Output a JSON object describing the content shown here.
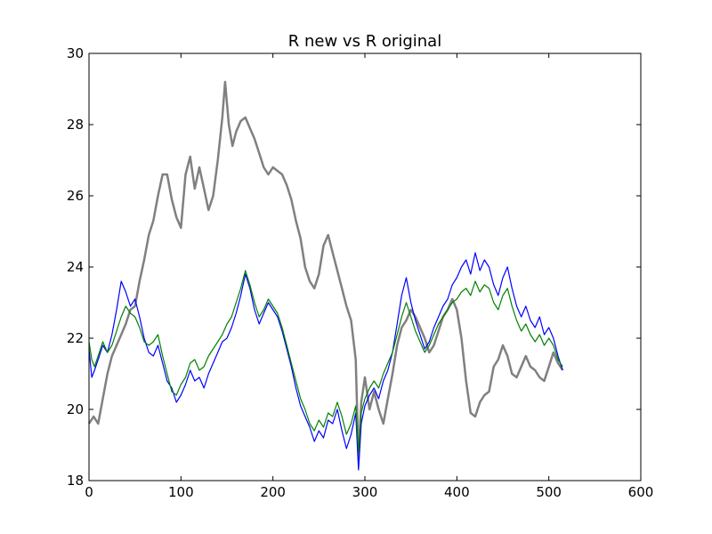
{
  "chart_data": {
    "type": "line",
    "title": "R new vs R original",
    "xlabel": "",
    "ylabel": "",
    "xlim": [
      0,
      600
    ],
    "ylim": [
      18,
      30
    ],
    "xticks": [
      0,
      100,
      200,
      300,
      400,
      500,
      600
    ],
    "yticks": [
      18,
      20,
      22,
      24,
      26,
      28,
      30
    ],
    "grid": false,
    "legend": "none",
    "series": [
      {
        "color": "#808080",
        "line_style": "thick",
        "points": [
          [
            0,
            19.6
          ],
          [
            5,
            19.8
          ],
          [
            10,
            19.6
          ],
          [
            15,
            20.3
          ],
          [
            20,
            21.0
          ],
          [
            25,
            21.5
          ],
          [
            30,
            21.8
          ],
          [
            35,
            22.1
          ],
          [
            40,
            22.4
          ],
          [
            45,
            22.8
          ],
          [
            50,
            22.9
          ],
          [
            55,
            23.6
          ],
          [
            60,
            24.2
          ],
          [
            65,
            24.9
          ],
          [
            70,
            25.3
          ],
          [
            75,
            26.0
          ],
          [
            80,
            26.6
          ],
          [
            85,
            26.6
          ],
          [
            90,
            25.9
          ],
          [
            95,
            25.4
          ],
          [
            100,
            25.1
          ],
          [
            105,
            26.6
          ],
          [
            110,
            27.1
          ],
          [
            115,
            26.2
          ],
          [
            120,
            26.8
          ],
          [
            125,
            26.2
          ],
          [
            130,
            25.6
          ],
          [
            135,
            26.0
          ],
          [
            140,
            27.0
          ],
          [
            145,
            28.2
          ],
          [
            148,
            29.2
          ],
          [
            152,
            28.0
          ],
          [
            156,
            27.4
          ],
          [
            160,
            27.8
          ],
          [
            165,
            28.1
          ],
          [
            170,
            28.2
          ],
          [
            175,
            27.9
          ],
          [
            180,
            27.6
          ],
          [
            185,
            27.2
          ],
          [
            190,
            26.8
          ],
          [
            195,
            26.6
          ],
          [
            200,
            26.8
          ],
          [
            205,
            26.7
          ],
          [
            210,
            26.6
          ],
          [
            215,
            26.3
          ],
          [
            220,
            25.9
          ],
          [
            225,
            25.3
          ],
          [
            230,
            24.8
          ],
          [
            235,
            24.0
          ],
          [
            240,
            23.6
          ],
          [
            245,
            23.4
          ],
          [
            250,
            23.8
          ],
          [
            255,
            24.6
          ],
          [
            260,
            24.9
          ],
          [
            265,
            24.4
          ],
          [
            270,
            23.9
          ],
          [
            275,
            23.4
          ],
          [
            280,
            22.9
          ],
          [
            285,
            22.5
          ],
          [
            290,
            21.4
          ],
          [
            293,
            18.6
          ],
          [
            296,
            20.2
          ],
          [
            300,
            20.9
          ],
          [
            305,
            20.0
          ],
          [
            310,
            20.5
          ],
          [
            315,
            20.0
          ],
          [
            320,
            19.6
          ],
          [
            325,
            20.3
          ],
          [
            330,
            21.0
          ],
          [
            335,
            21.8
          ],
          [
            340,
            22.3
          ],
          [
            345,
            22.5
          ],
          [
            350,
            22.8
          ],
          [
            355,
            22.6
          ],
          [
            360,
            22.3
          ],
          [
            365,
            22.0
          ],
          [
            370,
            21.6
          ],
          [
            375,
            21.8
          ],
          [
            380,
            22.2
          ],
          [
            385,
            22.6
          ],
          [
            390,
            22.8
          ],
          [
            395,
            23.1
          ],
          [
            400,
            22.8
          ],
          [
            405,
            22.0
          ],
          [
            410,
            20.8
          ],
          [
            415,
            19.9
          ],
          [
            420,
            19.8
          ],
          [
            425,
            20.2
          ],
          [
            430,
            20.4
          ],
          [
            435,
            20.5
          ],
          [
            440,
            21.2
          ],
          [
            445,
            21.4
          ],
          [
            450,
            21.8
          ],
          [
            455,
            21.5
          ],
          [
            460,
            21.0
          ],
          [
            465,
            20.9
          ],
          [
            470,
            21.2
          ],
          [
            475,
            21.5
          ],
          [
            480,
            21.2
          ],
          [
            485,
            21.1
          ],
          [
            490,
            20.9
          ],
          [
            495,
            20.8
          ],
          [
            500,
            21.2
          ],
          [
            505,
            21.6
          ],
          [
            510,
            21.3
          ],
          [
            515,
            21.1
          ]
        ]
      },
      {
        "color": "#0000ff",
        "line_style": "thin",
        "points": [
          [
            0,
            21.7
          ],
          [
            3,
            20.9
          ],
          [
            6,
            21.1
          ],
          [
            10,
            21.4
          ],
          [
            15,
            21.8
          ],
          [
            20,
            21.6
          ],
          [
            25,
            22.1
          ],
          [
            30,
            22.8
          ],
          [
            35,
            23.6
          ],
          [
            40,
            23.3
          ],
          [
            45,
            22.9
          ],
          [
            50,
            23.1
          ],
          [
            55,
            22.6
          ],
          [
            60,
            22.0
          ],
          [
            65,
            21.6
          ],
          [
            70,
            21.5
          ],
          [
            75,
            21.8
          ],
          [
            80,
            21.3
          ],
          [
            85,
            20.8
          ],
          [
            90,
            20.6
          ],
          [
            95,
            20.2
          ],
          [
            100,
            20.4
          ],
          [
            105,
            20.7
          ],
          [
            110,
            21.1
          ],
          [
            115,
            20.8
          ],
          [
            120,
            20.9
          ],
          [
            125,
            20.6
          ],
          [
            130,
            21.0
          ],
          [
            135,
            21.3
          ],
          [
            140,
            21.6
          ],
          [
            145,
            21.9
          ],
          [
            150,
            22.0
          ],
          [
            155,
            22.3
          ],
          [
            160,
            22.7
          ],
          [
            165,
            23.2
          ],
          [
            170,
            23.8
          ],
          [
            175,
            23.4
          ],
          [
            180,
            22.8
          ],
          [
            185,
            22.4
          ],
          [
            190,
            22.7
          ],
          [
            195,
            23.0
          ],
          [
            200,
            22.8
          ],
          [
            205,
            22.6
          ],
          [
            210,
            22.2
          ],
          [
            215,
            21.7
          ],
          [
            220,
            21.2
          ],
          [
            225,
            20.6
          ],
          [
            230,
            20.1
          ],
          [
            235,
            19.8
          ],
          [
            240,
            19.5
          ],
          [
            245,
            19.1
          ],
          [
            250,
            19.4
          ],
          [
            255,
            19.2
          ],
          [
            260,
            19.7
          ],
          [
            265,
            19.6
          ],
          [
            270,
            20.0
          ],
          [
            275,
            19.4
          ],
          [
            280,
            18.9
          ],
          [
            285,
            19.3
          ],
          [
            290,
            19.9
          ],
          [
            293,
            18.3
          ],
          [
            296,
            19.6
          ],
          [
            300,
            20.1
          ],
          [
            305,
            20.4
          ],
          [
            310,
            20.6
          ],
          [
            315,
            20.3
          ],
          [
            320,
            20.8
          ],
          [
            325,
            21.1
          ],
          [
            330,
            21.6
          ],
          [
            335,
            22.4
          ],
          [
            340,
            23.2
          ],
          [
            345,
            23.7
          ],
          [
            350,
            23.0
          ],
          [
            355,
            22.5
          ],
          [
            360,
            22.1
          ],
          [
            365,
            21.7
          ],
          [
            370,
            21.9
          ],
          [
            375,
            22.3
          ],
          [
            380,
            22.6
          ],
          [
            385,
            22.9
          ],
          [
            390,
            23.1
          ],
          [
            395,
            23.5
          ],
          [
            400,
            23.7
          ],
          [
            405,
            24.0
          ],
          [
            410,
            24.2
          ],
          [
            415,
            23.8
          ],
          [
            420,
            24.4
          ],
          [
            425,
            23.9
          ],
          [
            430,
            24.2
          ],
          [
            435,
            24.0
          ],
          [
            440,
            23.5
          ],
          [
            445,
            23.2
          ],
          [
            450,
            23.7
          ],
          [
            455,
            24.0
          ],
          [
            460,
            23.4
          ],
          [
            465,
            22.9
          ],
          [
            470,
            22.6
          ],
          [
            475,
            22.9
          ],
          [
            480,
            22.5
          ],
          [
            485,
            22.3
          ],
          [
            490,
            22.6
          ],
          [
            495,
            22.1
          ],
          [
            500,
            22.3
          ],
          [
            505,
            22.0
          ],
          [
            510,
            21.5
          ],
          [
            515,
            21.1
          ]
        ]
      },
      {
        "color": "#008000",
        "line_style": "thin",
        "points": [
          [
            0,
            21.9
          ],
          [
            3,
            21.4
          ],
          [
            6,
            21.2
          ],
          [
            10,
            21.5
          ],
          [
            15,
            21.9
          ],
          [
            20,
            21.6
          ],
          [
            25,
            21.8
          ],
          [
            30,
            22.2
          ],
          [
            35,
            22.6
          ],
          [
            40,
            22.9
          ],
          [
            45,
            22.7
          ],
          [
            50,
            22.6
          ],
          [
            55,
            22.3
          ],
          [
            60,
            21.9
          ],
          [
            65,
            21.8
          ],
          [
            70,
            21.9
          ],
          [
            75,
            22.1
          ],
          [
            80,
            21.5
          ],
          [
            85,
            21.0
          ],
          [
            90,
            20.5
          ],
          [
            95,
            20.4
          ],
          [
            100,
            20.7
          ],
          [
            105,
            20.9
          ],
          [
            110,
            21.3
          ],
          [
            115,
            21.4
          ],
          [
            120,
            21.1
          ],
          [
            125,
            21.2
          ],
          [
            130,
            21.5
          ],
          [
            135,
            21.7
          ],
          [
            140,
            21.9
          ],
          [
            145,
            22.1
          ],
          [
            150,
            22.4
          ],
          [
            155,
            22.6
          ],
          [
            160,
            23.0
          ],
          [
            165,
            23.4
          ],
          [
            170,
            23.9
          ],
          [
            175,
            23.5
          ],
          [
            180,
            23.0
          ],
          [
            185,
            22.6
          ],
          [
            190,
            22.8
          ],
          [
            195,
            23.1
          ],
          [
            200,
            22.9
          ],
          [
            205,
            22.7
          ],
          [
            210,
            22.3
          ],
          [
            215,
            21.8
          ],
          [
            220,
            21.3
          ],
          [
            225,
            20.8
          ],
          [
            230,
            20.3
          ],
          [
            235,
            20.0
          ],
          [
            240,
            19.6
          ],
          [
            245,
            19.4
          ],
          [
            250,
            19.7
          ],
          [
            255,
            19.5
          ],
          [
            260,
            19.9
          ],
          [
            265,
            19.8
          ],
          [
            270,
            20.2
          ],
          [
            275,
            19.8
          ],
          [
            280,
            19.3
          ],
          [
            285,
            19.6
          ],
          [
            290,
            20.1
          ],
          [
            293,
            18.8
          ],
          [
            296,
            19.9
          ],
          [
            300,
            20.3
          ],
          [
            305,
            20.6
          ],
          [
            310,
            20.8
          ],
          [
            315,
            20.6
          ],
          [
            320,
            21.0
          ],
          [
            325,
            21.3
          ],
          [
            330,
            21.6
          ],
          [
            335,
            22.1
          ],
          [
            340,
            22.6
          ],
          [
            345,
            23.0
          ],
          [
            350,
            22.6
          ],
          [
            355,
            22.2
          ],
          [
            360,
            21.9
          ],
          [
            365,
            21.6
          ],
          [
            370,
            21.8
          ],
          [
            375,
            22.1
          ],
          [
            380,
            22.4
          ],
          [
            385,
            22.6
          ],
          [
            390,
            22.8
          ],
          [
            395,
            23.0
          ],
          [
            400,
            23.1
          ],
          [
            405,
            23.3
          ],
          [
            410,
            23.4
          ],
          [
            415,
            23.2
          ],
          [
            420,
            23.6
          ],
          [
            425,
            23.3
          ],
          [
            430,
            23.5
          ],
          [
            435,
            23.4
          ],
          [
            440,
            23.0
          ],
          [
            445,
            22.8
          ],
          [
            450,
            23.2
          ],
          [
            455,
            23.4
          ],
          [
            460,
            22.9
          ],
          [
            465,
            22.5
          ],
          [
            470,
            22.2
          ],
          [
            475,
            22.4
          ],
          [
            480,
            22.1
          ],
          [
            485,
            21.9
          ],
          [
            490,
            22.1
          ],
          [
            495,
            21.8
          ],
          [
            500,
            22.0
          ],
          [
            505,
            21.8
          ],
          [
            510,
            21.4
          ],
          [
            515,
            21.2
          ]
        ]
      }
    ]
  }
}
